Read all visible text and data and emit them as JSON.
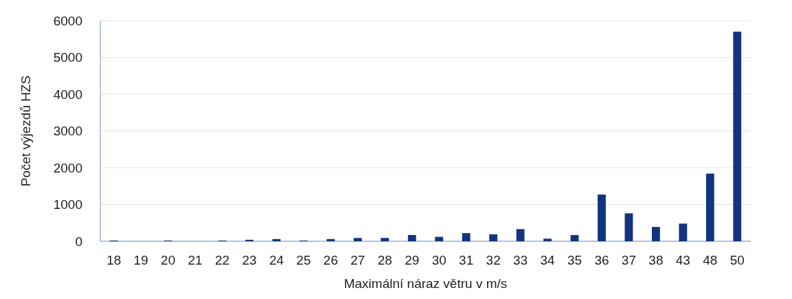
{
  "chart_data": {
    "type": "bar",
    "xlabel": "Maximální náraz větru v m/s",
    "ylabel": "Počet výjezdů HZS",
    "categories": [
      "18",
      "19",
      "20",
      "21",
      "22",
      "23",
      "24",
      "25",
      "26",
      "27",
      "28",
      "29",
      "30",
      "31",
      "32",
      "33",
      "34",
      "35",
      "36",
      "37",
      "38",
      "43",
      "48",
      "50"
    ],
    "values": [
      20,
      0,
      20,
      0,
      20,
      40,
      60,
      20,
      60,
      90,
      90,
      170,
      120,
      220,
      190,
      330,
      70,
      170,
      1270,
      760,
      390,
      480,
      1840,
      5700
    ],
    "color": "#13347f",
    "ylim": [
      0,
      6000
    ],
    "yticks": [
      0,
      1000,
      2000,
      3000,
      4000,
      5000,
      6000
    ],
    "grid": "y"
  }
}
